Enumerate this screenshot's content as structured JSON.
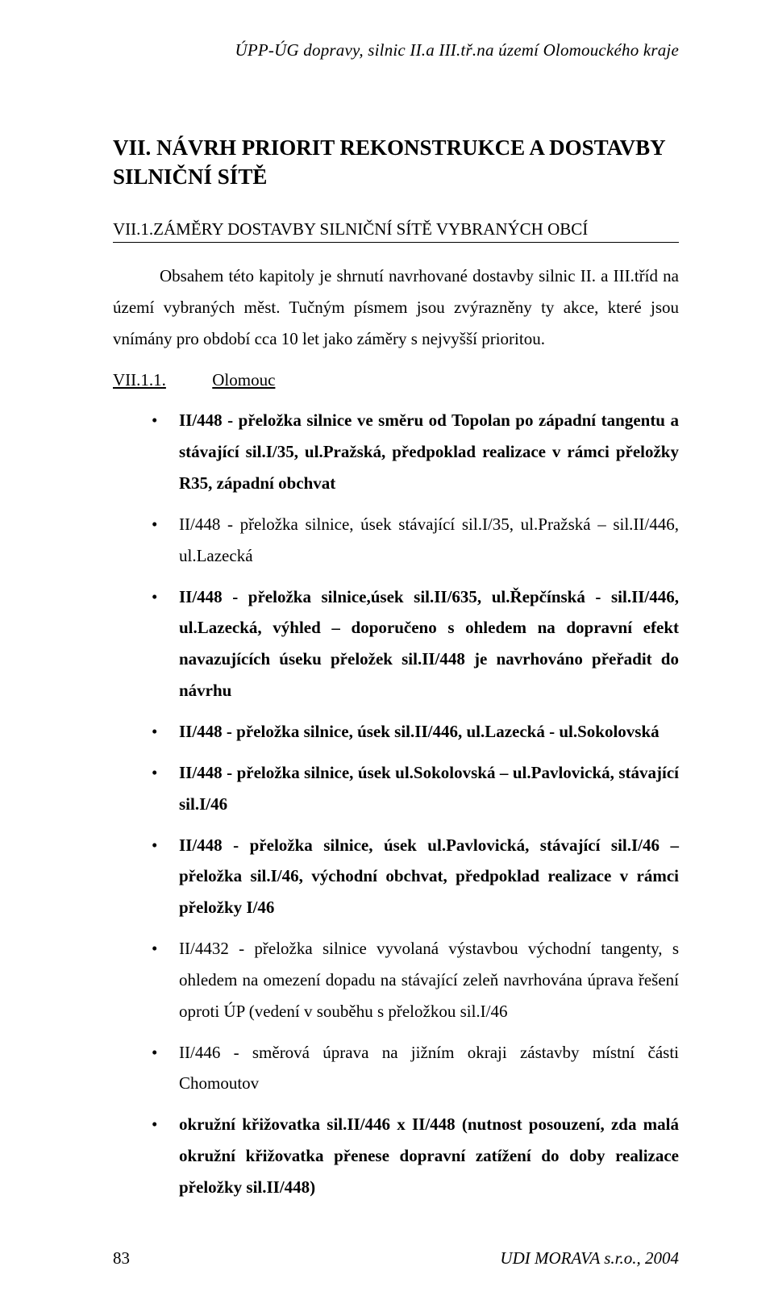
{
  "header": {
    "running_title": "ÚPP-ÚG dopravy, silnic II.a III.tř.na území Olomouckého kraje"
  },
  "section": {
    "title": "VII. NÁVRH PRIORIT REKONSTRUKCE A DOSTAVBY SILNIČNÍ SÍTĚ"
  },
  "subsection": {
    "title": "VII.1.ZÁMĚRY DOSTAVBY SILNIČNÍ SÍTĚ VYBRANÝCH OBCÍ"
  },
  "intro": "Obsahem této kapitoly je shrnutí navrhované dostavby silnic II. a III.tříd  na území vybraných měst. Tučným písmem jsou zvýrazněny ty akce, které jsou vnímány pro období cca 10 let jako záměry s nejvyšší prioritou.",
  "subsub": {
    "number": "VII.1.1.",
    "label": "Olomouc"
  },
  "bullets": [
    {
      "runs": [
        {
          "t": "II/448 - přeložka silnice ve směru od Topolan po západní tangentu a stávající sil.I/35, ul.Pražská, předpoklad realizace v rámci přeložky R35, západní obchvat",
          "b": true
        }
      ]
    },
    {
      "runs": [
        {
          "t": "II/448 - přeložka silnice, úsek stávající sil.I/35, ul.Pražská – sil.II/446, ul.Lazecká",
          "b": false
        }
      ]
    },
    {
      "runs": [
        {
          "t": "II/448 - přeložka silnice,úsek sil.II/635, ul.Řepčínská - sil.II/446, ul.Lazecká, výhled – doporučeno s ohledem na dopravní efekt navazujících úseku přeložek sil.II/448 je navrhováno přeřadit do návrhu",
          "b": true
        }
      ]
    },
    {
      "runs": [
        {
          "t": "II/448  - přeložka silnice, úsek sil.II/446, ul.Lazecká  - ul.Sokolovská",
          "b": true
        }
      ]
    },
    {
      "runs": [
        {
          "t": "II/448  - přeložka silnice, úsek  ul.Sokolovská – ul.Pavlovická, stávající sil.I/46",
          "b": true
        }
      ]
    },
    {
      "runs": [
        {
          "t": "II/448  - přeložka silnice, úsek  ul.Pavlovická, stávající sil.I/46 – přeložka sil.I/46, východní obchvat,  předpoklad realizace v rámci přeložky I/46",
          "b": true
        }
      ]
    },
    {
      "runs": [
        {
          "t": "II/4432 - přeložka silnice vyvolaná výstavbou východní tangenty, s ohledem na omezení dopadu na stávající zeleň navrhována úprava řešení oproti ÚP (vedení v souběhu s přeložkou sil.I/46",
          "b": false
        }
      ]
    },
    {
      "runs": [
        {
          "t": "II/446 - směrová úprava na jižním okraji zástavby místní části Chomoutov",
          "b": false
        }
      ]
    },
    {
      "runs": [
        {
          "t": "okružní křižovatka sil.II/446 x II/448 (nutnost posouzení, zda malá okružní křižovatka přenese dopravní zatížení do doby realizace přeložky sil.II/448)",
          "b": true
        }
      ]
    }
  ],
  "footer": {
    "page_number": "83",
    "source": "UDI MORAVA s.r.o., 2004"
  }
}
